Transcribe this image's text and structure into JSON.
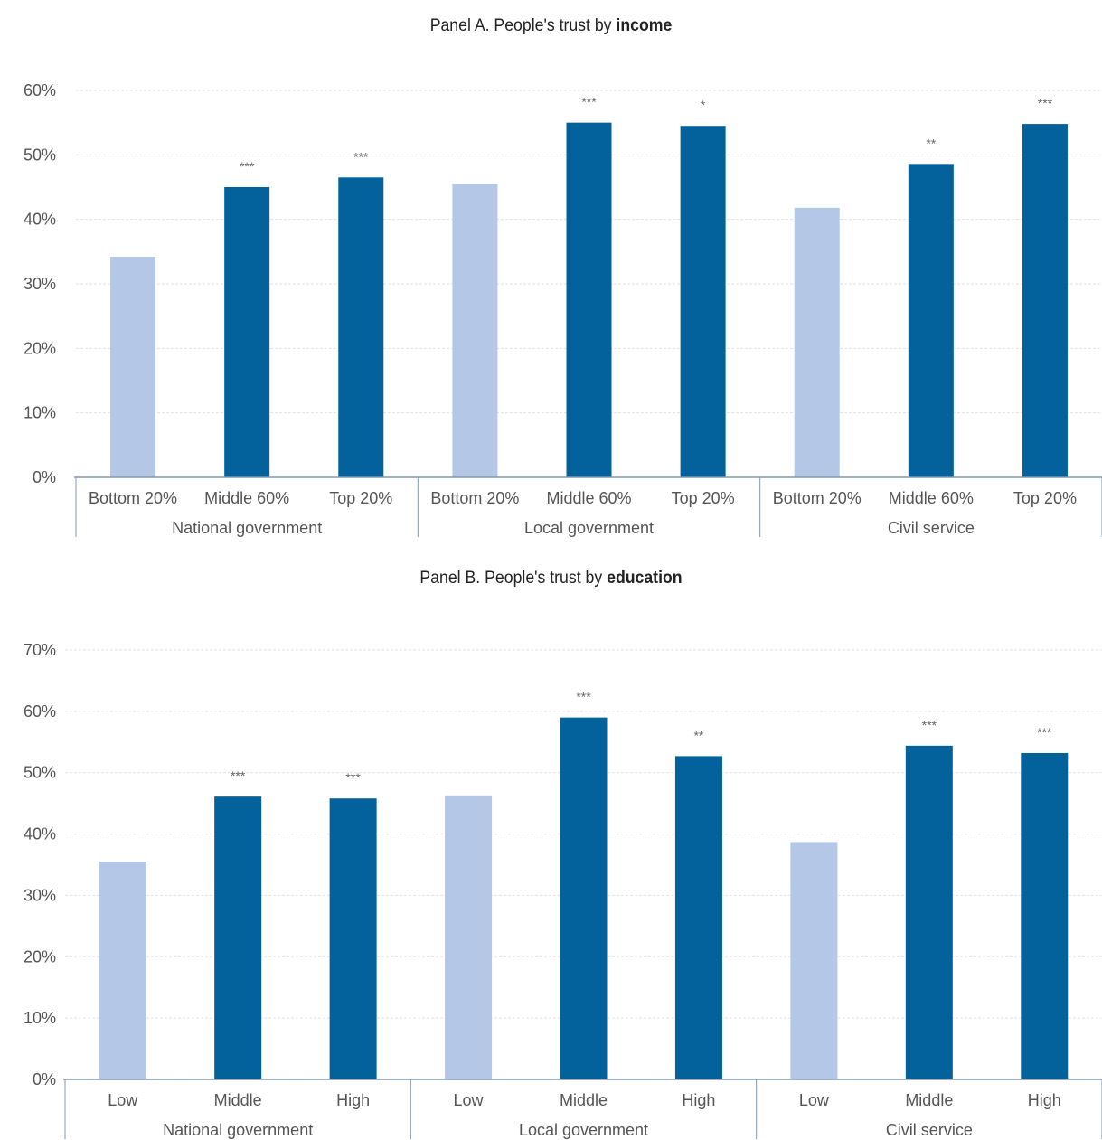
{
  "panels": [
    {
      "title_prefix": "Panel A. People's trust by ",
      "title_bold": "income",
      "chart_data": {
        "type": "bar",
        "groups": [
          "National government",
          "Local government",
          "Civil service"
        ],
        "categories": [
          "Bottom 20%",
          "Middle 60%",
          "Top 20%"
        ],
        "values": [
          [
            34.2,
            45.0,
            46.5
          ],
          [
            45.5,
            55.0,
            54.5
          ],
          [
            41.8,
            48.6,
            54.8
          ]
        ],
        "significance": [
          [
            "",
            "***",
            "***"
          ],
          [
            "",
            "***",
            "*"
          ],
          [
            "",
            "**",
            "***"
          ]
        ],
        "ylim": [
          0,
          60
        ],
        "yticks": [
          "0%",
          "10%",
          "20%",
          "30%",
          "40%",
          "50%",
          "60%"
        ],
        "grid": true,
        "colors": {
          "reference": "#b4c7e7",
          "highlight": "#03629b"
        }
      }
    },
    {
      "title_prefix": "Panel B. People's trust by ",
      "title_bold": "education",
      "chart_data": {
        "type": "bar",
        "groups": [
          "National government",
          "Local government",
          "Civil service"
        ],
        "categories": [
          "Low",
          "Middle",
          "High"
        ],
        "values": [
          [
            35.5,
            46.1,
            45.8
          ],
          [
            46.3,
            59.0,
            52.7
          ],
          [
            38.7,
            54.4,
            53.2
          ]
        ],
        "significance": [
          [
            "",
            "***",
            "***"
          ],
          [
            "",
            "***",
            "**"
          ],
          [
            "",
            "***",
            "***"
          ]
        ],
        "ylim": [
          0,
          70
        ],
        "yticks": [
          "0%",
          "10%",
          "20%",
          "30%",
          "40%",
          "50%",
          "60%",
          "70%"
        ],
        "grid": true,
        "colors": {
          "reference": "#b4c7e7",
          "highlight": "#03629b"
        }
      }
    }
  ]
}
